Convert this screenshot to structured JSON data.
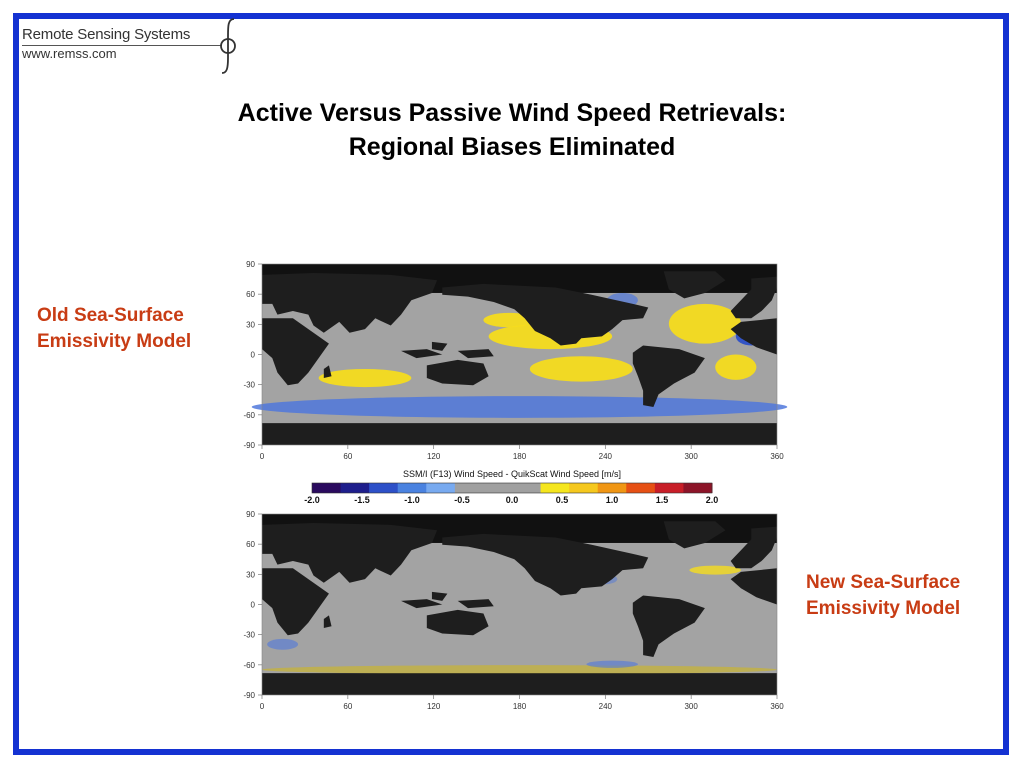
{
  "logo": {
    "name": "Remote Sensing Systems",
    "url": "www.remss.com"
  },
  "title": {
    "line1": "Active Versus Passive Wind Speed Retrievals:",
    "line2": "Regional Biases Eliminated"
  },
  "labels": {
    "old": [
      "Old Sea-Surface",
      "Emissivity Model"
    ],
    "new": [
      "New Sea-Surface",
      "Emissivity Model"
    ]
  },
  "maps": {
    "lon_ticks": [
      "0",
      "60",
      "120",
      "180",
      "240",
      "300",
      "360"
    ],
    "lat_ticks": [
      "90",
      "60",
      "30",
      "0",
      "-30",
      "-60",
      "-90"
    ]
  },
  "colorbar": {
    "title": "SSM/I (F13) Wind Speed - QuikScat Wind Speed [m/s]",
    "tick_labels": [
      "-2.0",
      "-1.5",
      "-1.0",
      "-0.5",
      "0.0",
      "0.5",
      "1.0",
      "1.5",
      "2.0"
    ],
    "colors": [
      "#2a0a5e",
      "#1e1e8c",
      "#2d50c8",
      "#4a82e0",
      "#78aaf0",
      "#a0a0a0",
      "#a0a0a0",
      "#a0a0a0",
      "#f5e61e",
      "#f5c81e",
      "#f09614",
      "#e65014",
      "#c81e28",
      "#8c1428"
    ]
  },
  "colors": {
    "border": "#1432d2",
    "label": "#c83c14",
    "land": "#1e1e1e",
    "ocean": "#a3a3a3",
    "positive_bias": "#f5dc1e",
    "negative_bias": "#5078dc"
  }
}
